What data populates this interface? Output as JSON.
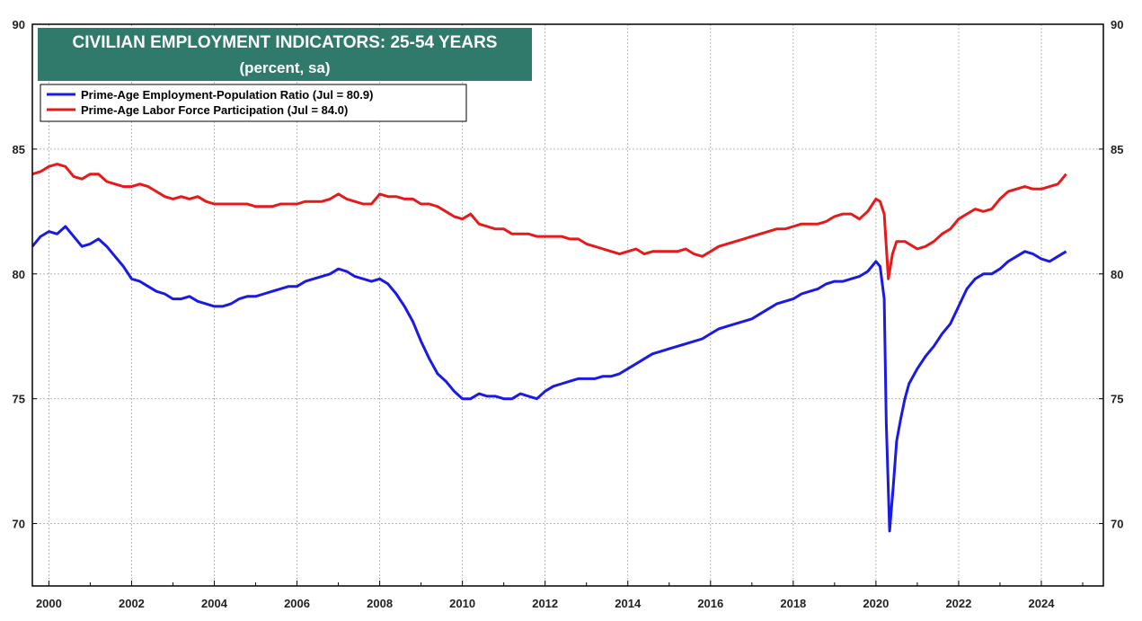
{
  "chart_data": {
    "type": "line",
    "title": "CIVILIAN EMPLOYMENT INDICATORS: 25-54 YEARS",
    "subtitle": "(percent, sa)",
    "xlabel": "",
    "ylabel": "",
    "xlim": [
      1999.6,
      2025.5
    ],
    "ylim": [
      67.5,
      90
    ],
    "x_ticks": [
      2000,
      2002,
      2004,
      2006,
      2008,
      2010,
      2012,
      2014,
      2016,
      2018,
      2020,
      2022,
      2024
    ],
    "y_ticks": [
      70,
      75,
      80,
      85,
      90
    ],
    "grid": true,
    "legend_position": "top-left",
    "title_box_color": "#2f7a6b",
    "series": [
      {
        "name": "Prime-Age Employment-Population Ratio (Jul  = 80.9)",
        "color": "#1a1ae6",
        "points": [
          [
            1999.6,
            81.1
          ],
          [
            1999.8,
            81.5
          ],
          [
            2000.0,
            81.7
          ],
          [
            2000.2,
            81.6
          ],
          [
            2000.4,
            81.9
          ],
          [
            2000.6,
            81.5
          ],
          [
            2000.8,
            81.1
          ],
          [
            2001.0,
            81.2
          ],
          [
            2001.2,
            81.4
          ],
          [
            2001.4,
            81.1
          ],
          [
            2001.6,
            80.7
          ],
          [
            2001.8,
            80.3
          ],
          [
            2002.0,
            79.8
          ],
          [
            2002.2,
            79.7
          ],
          [
            2002.4,
            79.5
          ],
          [
            2002.6,
            79.3
          ],
          [
            2002.8,
            79.2
          ],
          [
            2003.0,
            79.0
          ],
          [
            2003.2,
            79.0
          ],
          [
            2003.4,
            79.1
          ],
          [
            2003.6,
            78.9
          ],
          [
            2003.8,
            78.8
          ],
          [
            2004.0,
            78.7
          ],
          [
            2004.2,
            78.7
          ],
          [
            2004.4,
            78.8
          ],
          [
            2004.6,
            79.0
          ],
          [
            2004.8,
            79.1
          ],
          [
            2005.0,
            79.1
          ],
          [
            2005.2,
            79.2
          ],
          [
            2005.4,
            79.3
          ],
          [
            2005.6,
            79.4
          ],
          [
            2005.8,
            79.5
          ],
          [
            2006.0,
            79.5
          ],
          [
            2006.2,
            79.7
          ],
          [
            2006.4,
            79.8
          ],
          [
            2006.6,
            79.9
          ],
          [
            2006.8,
            80.0
          ],
          [
            2007.0,
            80.2
          ],
          [
            2007.2,
            80.1
          ],
          [
            2007.4,
            79.9
          ],
          [
            2007.6,
            79.8
          ],
          [
            2007.8,
            79.7
          ],
          [
            2008.0,
            79.8
          ],
          [
            2008.2,
            79.6
          ],
          [
            2008.4,
            79.2
          ],
          [
            2008.6,
            78.7
          ],
          [
            2008.8,
            78.1
          ],
          [
            2009.0,
            77.3
          ],
          [
            2009.2,
            76.6
          ],
          [
            2009.4,
            76.0
          ],
          [
            2009.6,
            75.7
          ],
          [
            2009.8,
            75.3
          ],
          [
            2010.0,
            75.0
          ],
          [
            2010.2,
            75.0
          ],
          [
            2010.4,
            75.2
          ],
          [
            2010.6,
            75.1
          ],
          [
            2010.8,
            75.1
          ],
          [
            2011.0,
            75.0
          ],
          [
            2011.2,
            75.0
          ],
          [
            2011.4,
            75.2
          ],
          [
            2011.6,
            75.1
          ],
          [
            2011.8,
            75.0
          ],
          [
            2012.0,
            75.3
          ],
          [
            2012.2,
            75.5
          ],
          [
            2012.4,
            75.6
          ],
          [
            2012.6,
            75.7
          ],
          [
            2012.8,
            75.8
          ],
          [
            2013.0,
            75.8
          ],
          [
            2013.2,
            75.8
          ],
          [
            2013.4,
            75.9
          ],
          [
            2013.6,
            75.9
          ],
          [
            2013.8,
            76.0
          ],
          [
            2014.0,
            76.2
          ],
          [
            2014.2,
            76.4
          ],
          [
            2014.4,
            76.6
          ],
          [
            2014.6,
            76.8
          ],
          [
            2014.8,
            76.9
          ],
          [
            2015.0,
            77.0
          ],
          [
            2015.2,
            77.1
          ],
          [
            2015.4,
            77.2
          ],
          [
            2015.6,
            77.3
          ],
          [
            2015.8,
            77.4
          ],
          [
            2016.0,
            77.6
          ],
          [
            2016.2,
            77.8
          ],
          [
            2016.4,
            77.9
          ],
          [
            2016.6,
            78.0
          ],
          [
            2016.8,
            78.1
          ],
          [
            2017.0,
            78.2
          ],
          [
            2017.2,
            78.4
          ],
          [
            2017.4,
            78.6
          ],
          [
            2017.6,
            78.8
          ],
          [
            2017.8,
            78.9
          ],
          [
            2018.0,
            79.0
          ],
          [
            2018.2,
            79.2
          ],
          [
            2018.4,
            79.3
          ],
          [
            2018.6,
            79.4
          ],
          [
            2018.8,
            79.6
          ],
          [
            2019.0,
            79.7
          ],
          [
            2019.2,
            79.7
          ],
          [
            2019.4,
            79.8
          ],
          [
            2019.6,
            79.9
          ],
          [
            2019.8,
            80.1
          ],
          [
            2020.0,
            80.5
          ],
          [
            2020.1,
            80.3
          ],
          [
            2020.2,
            79.0
          ],
          [
            2020.25,
            74.0
          ],
          [
            2020.33,
            69.7
          ],
          [
            2020.42,
            71.5
          ],
          [
            2020.5,
            73.3
          ],
          [
            2020.6,
            74.2
          ],
          [
            2020.7,
            75.0
          ],
          [
            2020.8,
            75.6
          ],
          [
            2021.0,
            76.2
          ],
          [
            2021.2,
            76.7
          ],
          [
            2021.4,
            77.1
          ],
          [
            2021.6,
            77.6
          ],
          [
            2021.8,
            78.0
          ],
          [
            2022.0,
            78.7
          ],
          [
            2022.2,
            79.4
          ],
          [
            2022.4,
            79.8
          ],
          [
            2022.6,
            80.0
          ],
          [
            2022.8,
            80.0
          ],
          [
            2023.0,
            80.2
          ],
          [
            2023.2,
            80.5
          ],
          [
            2023.4,
            80.7
          ],
          [
            2023.6,
            80.9
          ],
          [
            2023.8,
            80.8
          ],
          [
            2024.0,
            80.6
          ],
          [
            2024.2,
            80.5
          ],
          [
            2024.4,
            80.7
          ],
          [
            2024.6,
            80.9
          ]
        ]
      },
      {
        "name": "Prime-Age Labor Force Participation (Jul  = 84.0)",
        "color": "#e61a1a",
        "points": [
          [
            1999.6,
            84.0
          ],
          [
            1999.8,
            84.1
          ],
          [
            2000.0,
            84.3
          ],
          [
            2000.2,
            84.4
          ],
          [
            2000.4,
            84.3
          ],
          [
            2000.6,
            83.9
          ],
          [
            2000.8,
            83.8
          ],
          [
            2001.0,
            84.0
          ],
          [
            2001.2,
            84.0
          ],
          [
            2001.4,
            83.7
          ],
          [
            2001.6,
            83.6
          ],
          [
            2001.8,
            83.5
          ],
          [
            2002.0,
            83.5
          ],
          [
            2002.2,
            83.6
          ],
          [
            2002.4,
            83.5
          ],
          [
            2002.6,
            83.3
          ],
          [
            2002.8,
            83.1
          ],
          [
            2003.0,
            83.0
          ],
          [
            2003.2,
            83.1
          ],
          [
            2003.4,
            83.0
          ],
          [
            2003.6,
            83.1
          ],
          [
            2003.8,
            82.9
          ],
          [
            2004.0,
            82.8
          ],
          [
            2004.2,
            82.8
          ],
          [
            2004.4,
            82.8
          ],
          [
            2004.6,
            82.8
          ],
          [
            2004.8,
            82.8
          ],
          [
            2005.0,
            82.7
          ],
          [
            2005.2,
            82.7
          ],
          [
            2005.4,
            82.7
          ],
          [
            2005.6,
            82.8
          ],
          [
            2005.8,
            82.8
          ],
          [
            2006.0,
            82.8
          ],
          [
            2006.2,
            82.9
          ],
          [
            2006.4,
            82.9
          ],
          [
            2006.6,
            82.9
          ],
          [
            2006.8,
            83.0
          ],
          [
            2007.0,
            83.2
          ],
          [
            2007.2,
            83.0
          ],
          [
            2007.4,
            82.9
          ],
          [
            2007.6,
            82.8
          ],
          [
            2007.8,
            82.8
          ],
          [
            2008.0,
            83.2
          ],
          [
            2008.2,
            83.1
          ],
          [
            2008.4,
            83.1
          ],
          [
            2008.6,
            83.0
          ],
          [
            2008.8,
            83.0
          ],
          [
            2009.0,
            82.8
          ],
          [
            2009.2,
            82.8
          ],
          [
            2009.4,
            82.7
          ],
          [
            2009.6,
            82.5
          ],
          [
            2009.8,
            82.3
          ],
          [
            2010.0,
            82.2
          ],
          [
            2010.2,
            82.4
          ],
          [
            2010.4,
            82.0
          ],
          [
            2010.6,
            81.9
          ],
          [
            2010.8,
            81.8
          ],
          [
            2011.0,
            81.8
          ],
          [
            2011.2,
            81.6
          ],
          [
            2011.4,
            81.6
          ],
          [
            2011.6,
            81.6
          ],
          [
            2011.8,
            81.5
          ],
          [
            2012.0,
            81.5
          ],
          [
            2012.2,
            81.5
          ],
          [
            2012.4,
            81.5
          ],
          [
            2012.6,
            81.4
          ],
          [
            2012.8,
            81.4
          ],
          [
            2013.0,
            81.2
          ],
          [
            2013.2,
            81.1
          ],
          [
            2013.4,
            81.0
          ],
          [
            2013.6,
            80.9
          ],
          [
            2013.8,
            80.8
          ],
          [
            2014.0,
            80.9
          ],
          [
            2014.2,
            81.0
          ],
          [
            2014.4,
            80.8
          ],
          [
            2014.6,
            80.9
          ],
          [
            2014.8,
            80.9
          ],
          [
            2015.0,
            80.9
          ],
          [
            2015.2,
            80.9
          ],
          [
            2015.4,
            81.0
          ],
          [
            2015.6,
            80.8
          ],
          [
            2015.8,
            80.7
          ],
          [
            2016.0,
            80.9
          ],
          [
            2016.2,
            81.1
          ],
          [
            2016.4,
            81.2
          ],
          [
            2016.6,
            81.3
          ],
          [
            2016.8,
            81.4
          ],
          [
            2017.0,
            81.5
          ],
          [
            2017.2,
            81.6
          ],
          [
            2017.4,
            81.7
          ],
          [
            2017.6,
            81.8
          ],
          [
            2017.8,
            81.8
          ],
          [
            2018.0,
            81.9
          ],
          [
            2018.2,
            82.0
          ],
          [
            2018.4,
            82.0
          ],
          [
            2018.6,
            82.0
          ],
          [
            2018.8,
            82.1
          ],
          [
            2019.0,
            82.3
          ],
          [
            2019.2,
            82.4
          ],
          [
            2019.4,
            82.4
          ],
          [
            2019.6,
            82.2
          ],
          [
            2019.8,
            82.5
          ],
          [
            2020.0,
            83.0
          ],
          [
            2020.1,
            82.9
          ],
          [
            2020.2,
            82.4
          ],
          [
            2020.3,
            79.8
          ],
          [
            2020.4,
            80.8
          ],
          [
            2020.5,
            81.3
          ],
          [
            2020.7,
            81.3
          ],
          [
            2020.9,
            81.1
          ],
          [
            2021.0,
            81.0
          ],
          [
            2021.2,
            81.1
          ],
          [
            2021.4,
            81.3
          ],
          [
            2021.6,
            81.6
          ],
          [
            2021.8,
            81.8
          ],
          [
            2022.0,
            82.2
          ],
          [
            2022.2,
            82.4
          ],
          [
            2022.4,
            82.6
          ],
          [
            2022.6,
            82.5
          ],
          [
            2022.8,
            82.6
          ],
          [
            2023.0,
            83.0
          ],
          [
            2023.2,
            83.3
          ],
          [
            2023.4,
            83.4
          ],
          [
            2023.6,
            83.5
          ],
          [
            2023.8,
            83.4
          ],
          [
            2024.0,
            83.4
          ],
          [
            2024.2,
            83.5
          ],
          [
            2024.4,
            83.6
          ],
          [
            2024.6,
            84.0
          ]
        ]
      }
    ]
  }
}
